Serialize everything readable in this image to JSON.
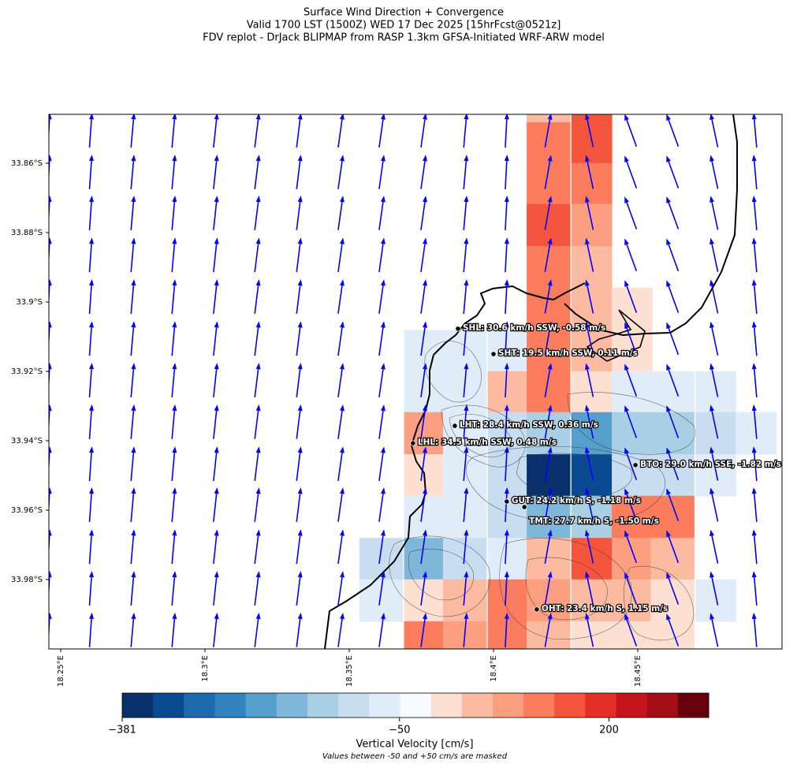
{
  "chart_data": {
    "type": "map",
    "title": [
      "Surface Wind Direction + Convergence",
      "Valid 1700 LST (1500Z) WED 17 Dec 2025 [15hrFcst@0521z]",
      "FDV replot - DrJack BLIPMAP from RASP 1.3km GFSA-Initiated WRF-ARW model"
    ],
    "xlim": [
      18.2459,
      18.5
    ],
    "ylim": [
      33.8459,
      34.0
    ],
    "xticks": [
      {
        "value": 18.25,
        "label": "18.25°E"
      },
      {
        "value": 18.3,
        "label": "18.3°E"
      },
      {
        "value": 18.35,
        "label": "18.35°E"
      },
      {
        "value": 18.4,
        "label": "18.4°E"
      },
      {
        "value": 18.45,
        "label": "18.45°E"
      }
    ],
    "yticks": [
      {
        "value": 33.86,
        "label": "33.86°S"
      },
      {
        "value": 33.88,
        "label": "33.88°S"
      },
      {
        "value": 33.9,
        "label": "33.9°S"
      },
      {
        "value": 33.92,
        "label": "33.92°S"
      },
      {
        "value": 33.94,
        "label": "33.94°S"
      },
      {
        "value": 33.96,
        "label": "33.96°S"
      },
      {
        "value": 33.98,
        "label": "33.98°S"
      }
    ],
    "cells": {
      "lons": [
        18.361,
        18.376,
        18.39,
        18.405,
        18.419,
        18.434,
        18.448,
        18.462,
        18.477,
        18.491
      ],
      "lats": [
        33.8422,
        33.8541,
        33.8659,
        33.8778,
        33.8899,
        33.9019,
        33.914,
        33.9259,
        33.9378,
        33.9499,
        33.9619,
        33.974,
        33.986,
        33.9981
      ],
      "values": [
        [
          null,
          null,
          null,
          null,
          45,
          150,
          null,
          null,
          null,
          null
        ],
        [
          null,
          null,
          null,
          null,
          115,
          150,
          null,
          null,
          null,
          null
        ],
        [
          null,
          null,
          null,
          null,
          115,
          115,
          null,
          null,
          null,
          null
        ],
        [
          null,
          null,
          null,
          null,
          150,
          80,
          null,
          null,
          null,
          null
        ],
        [
          null,
          null,
          null,
          null,
          115,
          45,
          null,
          null,
          null,
          null
        ],
        [
          null,
          null,
          null,
          null,
          115,
          45,
          15,
          null,
          null,
          null
        ],
        [
          null,
          -65,
          -65,
          -65,
          115,
          45,
          15,
          null,
          null,
          null
        ],
        [
          null,
          -65,
          -65,
          45,
          115,
          15,
          -65,
          -65,
          -65,
          null
        ],
        [
          null,
          80,
          -65,
          -100,
          -140,
          -215,
          -140,
          -140,
          -100,
          -65
        ],
        [
          null,
          15,
          -65,
          -100,
          -365,
          -325,
          -100,
          -100,
          -65,
          null
        ],
        [
          null,
          -65,
          -65,
          -100,
          -175,
          -140,
          115,
          115,
          null,
          null
        ],
        [
          -100,
          -175,
          -100,
          -65,
          45,
          150,
          80,
          45,
          null,
          null
        ],
        [
          -65,
          15,
          45,
          115,
          80,
          45,
          45,
          15,
          -65,
          null
        ],
        [
          null,
          115,
          80,
          115,
          45,
          15,
          15,
          15,
          null,
          null
        ]
      ]
    },
    "wind": {
      "color": "#0000ff",
      "lons": [
        18.2459,
        18.2604,
        18.2749,
        18.2891,
        18.3036,
        18.318,
        18.3325,
        18.347,
        18.3612,
        18.3757,
        18.3902,
        18.4044,
        18.4189,
        18.4333,
        18.4475,
        18.462,
        18.4765,
        18.4907
      ],
      "lats": [
        33.8505,
        33.8625,
        33.8743,
        33.8864,
        33.8984,
        33.9105,
        33.9225,
        33.9345,
        33.9466,
        33.9584,
        33.9705,
        33.9825,
        33.9945
      ],
      "heading": [
        3,
        4,
        5,
        5,
        6,
        7,
        7,
        8,
        8,
        8,
        5,
        3,
        10,
        -12,
        -20,
        -20,
        -12,
        -5
      ]
    },
    "stations": [
      {
        "label": "SHL: 30.6 km/h SSW, -0.58 m/s",
        "lon": 18.3877,
        "lat": 33.9077
      },
      {
        "label": "SHT: 19.5 km/h SSW, 0.11 m/s",
        "lon": 18.4,
        "lat": 33.915
      },
      {
        "label": "LHT: 28.4 km/h SSW, 0.36 m/s",
        "lon": 18.3866,
        "lat": 33.9357
      },
      {
        "label": "LHL: 34.5 km/h SSW, 0.48 m/s",
        "lon": 18.3721,
        "lat": 33.9407
      },
      {
        "label": "BTO: 29.0 km/h SSE, -1.82 m/s",
        "lon": 18.4492,
        "lat": 33.947
      },
      {
        "label": "GUT: 24.2 km/h S, -1.18 m/s",
        "lon": 18.4046,
        "lat": 33.9575
      },
      {
        "label": "TMT: 27.7 km/h S, -1.50 m/s",
        "lon": 18.4107,
        "lat": 33.9591
      },
      {
        "label": "OHT: 23.4 km/h S, 1.15 m/s",
        "lon": 18.415,
        "lat": 33.9886
      }
    ],
    "colorbar": {
      "lim": [
        -381,
        319
      ],
      "ticks": [
        {
          "value": -381,
          "label": "−381"
        },
        {
          "value": -50,
          "label": "−50"
        },
        200
      ],
      "colors": [
        "#08306b",
        "#0a4a90",
        "#1c6aaf",
        "#3383be",
        "#559fcd",
        "#7fb7da",
        "#a9cfe5",
        "#c9ddf0",
        "#e0ecf7",
        "#f7fbff",
        "#fee0d2",
        "#fcbba1",
        "#fc9e80",
        "#fb7d5d",
        "#f5553d",
        "#e32f27",
        "#c4161c",
        "#a10e16",
        "#67000d"
      ],
      "label": "Vertical Velocity [cm/s]",
      "note": "Values between -50 and +50 cm/s are masked"
    }
  }
}
